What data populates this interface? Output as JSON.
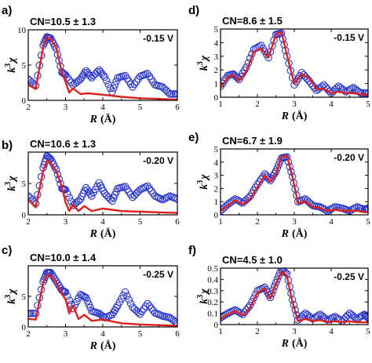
{
  "chart_data": [
    {
      "type": "line",
      "panel_label": "a)",
      "title": "CN=10.5 ± 1.3",
      "annotation": "-0.15 V",
      "xlabel": "R",
      "xunit": "(Å)",
      "ylabel": "k",
      "ylabel_sup": "3",
      "ylabel_suffix": "χ",
      "xlim": [
        2,
        6
      ],
      "ylim": [
        0,
        10
      ],
      "xticks": [
        "2",
        "3",
        "4",
        "5",
        "6"
      ],
      "yticks": [
        "0",
        "5",
        "10"
      ],
      "series": [
        {
          "style": "blue-circles",
          "x": [
            2.0,
            2.2,
            2.4,
            2.5,
            2.6,
            2.75,
            2.9,
            3.0,
            3.2,
            3.4,
            3.55,
            3.7,
            3.9,
            4.05,
            4.25,
            4.4,
            4.6,
            4.8,
            5.0,
            5.2,
            5.4,
            5.6,
            5.8,
            6.0
          ],
          "y": [
            3.0,
            2.1,
            7.8,
            9.0,
            8.8,
            7.3,
            4.0,
            3.6,
            2.2,
            3.0,
            4.2,
            3.2,
            4.3,
            3.3,
            1.2,
            3.2,
            3.5,
            1.9,
            3.4,
            3.8,
            2.2,
            1.9,
            0.9,
            0.9
          ]
        },
        {
          "style": "red-line",
          "x": [
            2.0,
            2.2,
            2.4,
            2.5,
            2.6,
            2.75,
            2.9,
            3.0,
            3.1,
            3.2,
            3.4,
            3.6,
            4.0,
            4.5,
            5.0,
            5.5,
            6.0
          ],
          "y": [
            2.2,
            1.6,
            7.6,
            9.0,
            8.7,
            7.5,
            4.0,
            2.6,
            1.1,
            1.7,
            0.9,
            1.0,
            0.8,
            0.5,
            0.3,
            0.2,
            0.1
          ]
        }
      ]
    },
    {
      "type": "line",
      "panel_label": "b)",
      "title": "CN=10.6 ± 1.3",
      "annotation": "-0.20 V",
      "xlabel": "R",
      "xunit": "(Å)",
      "ylabel": "k",
      "ylabel_sup": "3",
      "ylabel_suffix": "χ",
      "xlim": [
        2,
        6
      ],
      "ylim": [
        0,
        10
      ],
      "xticks": [
        "2",
        "3",
        "4",
        "5",
        "6"
      ],
      "yticks": [
        "0",
        "5"
      ],
      "series": [
        {
          "style": "blue-circles",
          "x": [
            2.0,
            2.2,
            2.4,
            2.5,
            2.6,
            2.75,
            2.9,
            3.0,
            3.2,
            3.4,
            3.55,
            3.7,
            3.9,
            4.05,
            4.25,
            4.4,
            4.6,
            4.8,
            5.0,
            5.2,
            5.4,
            5.6,
            5.8,
            6.0
          ],
          "y": [
            3.0,
            1.8,
            7.5,
            9.4,
            8.9,
            7.2,
            4.2,
            4.0,
            1.5,
            2.5,
            4.3,
            3.0,
            5.1,
            3.4,
            2.2,
            4.2,
            4.5,
            2.8,
            4.0,
            4.6,
            3.0,
            2.4,
            3.0,
            2.5
          ]
        },
        {
          "style": "red-line",
          "x": [
            2.0,
            2.2,
            2.4,
            2.5,
            2.6,
            2.75,
            2.9,
            3.0,
            3.1,
            3.2,
            3.35,
            3.5,
            3.7,
            4.0,
            4.5,
            5.0,
            5.5,
            6.0
          ],
          "y": [
            2.4,
            1.2,
            7.0,
            8.6,
            8.3,
            7.0,
            4.5,
            2.0,
            0.6,
            1.6,
            0.6,
            1.4,
            0.6,
            1.0,
            0.6,
            0.5,
            0.4,
            0.3
          ]
        }
      ]
    },
    {
      "type": "line",
      "panel_label": "c)",
      "title": "CN=10.0 ± 1.4",
      "annotation": "-0.25 V",
      "xlabel": "R",
      "xunit": "(Å)",
      "ylabel": "k",
      "ylabel_sup": "3",
      "ylabel_suffix": "χ",
      "xlim": [
        2,
        6
      ],
      "ylim": [
        0,
        10
      ],
      "xticks": [
        "2",
        "3",
        "4",
        "5",
        "6"
      ],
      "yticks": [
        "0",
        "5"
      ],
      "series": [
        {
          "style": "blue-circles",
          "x": [
            2.0,
            2.2,
            2.4,
            2.5,
            2.6,
            2.75,
            2.9,
            3.0,
            3.2,
            3.4,
            3.55,
            3.7,
            3.9,
            4.05,
            4.25,
            4.4,
            4.6,
            4.8,
            5.0,
            5.2,
            5.4,
            5.6,
            5.8,
            6.0
          ],
          "y": [
            2.2,
            2.2,
            7.4,
            8.9,
            8.9,
            7.5,
            6.0,
            5.7,
            3.0,
            5.3,
            4.8,
            2.6,
            2.2,
            1.5,
            2.0,
            3.5,
            5.7,
            3.2,
            2.1,
            3.8,
            2.3,
            1.8,
            1.5,
            0.6
          ]
        },
        {
          "style": "red-line",
          "x": [
            2.0,
            2.2,
            2.4,
            2.5,
            2.6,
            2.75,
            2.9,
            3.0,
            3.1,
            3.2,
            3.35,
            3.5,
            3.7,
            4.0,
            4.5,
            5.0,
            5.5,
            6.0
          ],
          "y": [
            1.3,
            1.2,
            7.2,
            8.5,
            8.4,
            7.3,
            5.4,
            4.5,
            2.2,
            3.5,
            1.3,
            2.0,
            1.0,
            1.2,
            0.6,
            0.4,
            0.3,
            0.2
          ]
        }
      ]
    },
    {
      "type": "line",
      "panel_label": "d)",
      "title": "CN=8.6 ± 1.5",
      "annotation": "-0.15 V",
      "xlabel": "R",
      "xunit": "(Å)",
      "ylabel": "k",
      "ylabel_sup": "3",
      "ylabel_suffix": "χ",
      "xlim": [
        1,
        5
      ],
      "ylim": [
        0,
        5
      ],
      "xticks": [
        "1",
        "2",
        "3",
        "4",
        "5"
      ],
      "yticks": [
        "0",
        "1",
        "2",
        "3",
        "4",
        "5"
      ],
      "series": [
        {
          "style": "blue-circles",
          "x": [
            1.0,
            1.2,
            1.35,
            1.5,
            1.7,
            1.9,
            2.1,
            2.3,
            2.5,
            2.65,
            2.8,
            3.0,
            3.2,
            3.4,
            3.6,
            3.8,
            4.0,
            4.2,
            4.4,
            4.6,
            4.8,
            5.0
          ],
          "y": [
            0.8,
            1.6,
            1.7,
            1.3,
            2.2,
            3.5,
            3.8,
            2.9,
            4.6,
            4.7,
            3.0,
            0.9,
            1.8,
            1.2,
            0.5,
            0.9,
            0.3,
            0.8,
            0.4,
            0.7,
            0.3,
            0.3
          ]
        },
        {
          "style": "red-line",
          "x": [
            1.0,
            1.2,
            1.35,
            1.5,
            1.7,
            1.9,
            2.1,
            2.3,
            2.5,
            2.65,
            2.8,
            3.0,
            3.2,
            3.4,
            3.6,
            3.8,
            4.0,
            4.2,
            4.4,
            4.6,
            4.8,
            5.0
          ],
          "y": [
            0.7,
            1.5,
            1.6,
            1.2,
            1.9,
            3.3,
            3.6,
            2.9,
            4.6,
            4.8,
            3.1,
            1.0,
            1.7,
            1.4,
            0.6,
            0.6,
            0.3,
            0.4,
            0.3,
            0.3,
            0.2,
            0.2
          ]
        }
      ]
    },
    {
      "type": "line",
      "panel_label": "e)",
      "title": "CN=6.7 ± 1.9",
      "annotation": "-0.20 V",
      "xlabel": "R",
      "xunit": "(Å)",
      "ylabel": "k",
      "ylabel_sup": "3",
      "ylabel_suffix": "χ",
      "xlim": [
        1,
        5
      ],
      "ylim": [
        0,
        5
      ],
      "xticks": [
        "1",
        "2",
        "3",
        "4",
        "5"
      ],
      "yticks": [
        "0",
        "1",
        "2",
        "3",
        "4",
        "5"
      ],
      "series": [
        {
          "style": "blue-circles",
          "x": [
            1.0,
            1.2,
            1.4,
            1.6,
            1.8,
            2.0,
            2.2,
            2.35,
            2.5,
            2.65,
            2.8,
            2.95,
            3.1,
            3.3,
            3.5,
            3.7,
            3.9,
            4.1,
            4.3,
            4.5,
            4.7,
            4.9,
            5.0
          ],
          "y": [
            0.3,
            0.8,
            1.2,
            0.9,
            1.4,
            2.3,
            3.1,
            2.6,
            3.3,
            4.3,
            4.4,
            2.9,
            1.0,
            1.2,
            0.7,
            0.6,
            0.3,
            0.6,
            0.5,
            0.3,
            0.6,
            0.4,
            0.5
          ]
        },
        {
          "style": "red-line",
          "x": [
            1.0,
            1.2,
            1.4,
            1.6,
            1.8,
            2.0,
            2.2,
            2.35,
            2.5,
            2.65,
            2.8,
            2.95,
            3.1,
            3.3,
            3.5,
            3.7,
            3.9,
            4.1,
            4.3,
            4.5,
            4.7,
            4.9,
            5.0
          ],
          "y": [
            0.3,
            0.7,
            1.1,
            0.8,
            1.2,
            2.1,
            3.0,
            2.5,
            3.1,
            4.4,
            4.5,
            2.9,
            0.9,
            1.0,
            0.6,
            0.5,
            0.3,
            0.4,
            0.3,
            0.3,
            0.3,
            0.2,
            0.2
          ]
        }
      ]
    },
    {
      "type": "line",
      "panel_label": "f)",
      "title": "CN=4.5 ± 1.0",
      "annotation": "-0.25 V",
      "xlabel": "R",
      "xunit": "(Å)",
      "ylabel": "k",
      "ylabel_sup": "3",
      "ylabel_suffix": "χ",
      "xlim": [
        1,
        5
      ],
      "ylim": [
        0,
        0.5
      ],
      "xticks": [
        "1",
        "2",
        "3",
        "4",
        "5"
      ],
      "yticks": [
        "0",
        "0.1",
        "0.2",
        "0.3",
        "0.4",
        "0.5"
      ],
      "series": [
        {
          "style": "blue-circles",
          "x": [
            1.0,
            1.2,
            1.4,
            1.6,
            1.8,
            2.0,
            2.2,
            2.35,
            2.5,
            2.65,
            2.8,
            2.95,
            3.1,
            3.3,
            3.5,
            3.7,
            3.9,
            4.1,
            4.3,
            4.5,
            4.7,
            4.9,
            5.0
          ],
          "y": [
            0.06,
            0.1,
            0.13,
            0.09,
            0.17,
            0.3,
            0.33,
            0.24,
            0.37,
            0.49,
            0.45,
            0.22,
            0.04,
            0.1,
            0.05,
            0.09,
            0.04,
            0.07,
            0.03,
            0.1,
            0.05,
            0.09,
            0.06
          ]
        },
        {
          "style": "red-line",
          "x": [
            1.0,
            1.2,
            1.4,
            1.6,
            1.8,
            2.0,
            2.2,
            2.35,
            2.5,
            2.65,
            2.8,
            2.95,
            3.1,
            3.3,
            3.5,
            3.7,
            3.9,
            4.1,
            4.3,
            4.5,
            4.7,
            4.9,
            5.0
          ],
          "y": [
            0.05,
            0.09,
            0.12,
            0.08,
            0.15,
            0.28,
            0.32,
            0.23,
            0.36,
            0.47,
            0.43,
            0.2,
            0.03,
            0.05,
            0.03,
            0.04,
            0.02,
            0.03,
            0.02,
            0.03,
            0.02,
            0.02,
            0.02
          ]
        }
      ]
    }
  ]
}
